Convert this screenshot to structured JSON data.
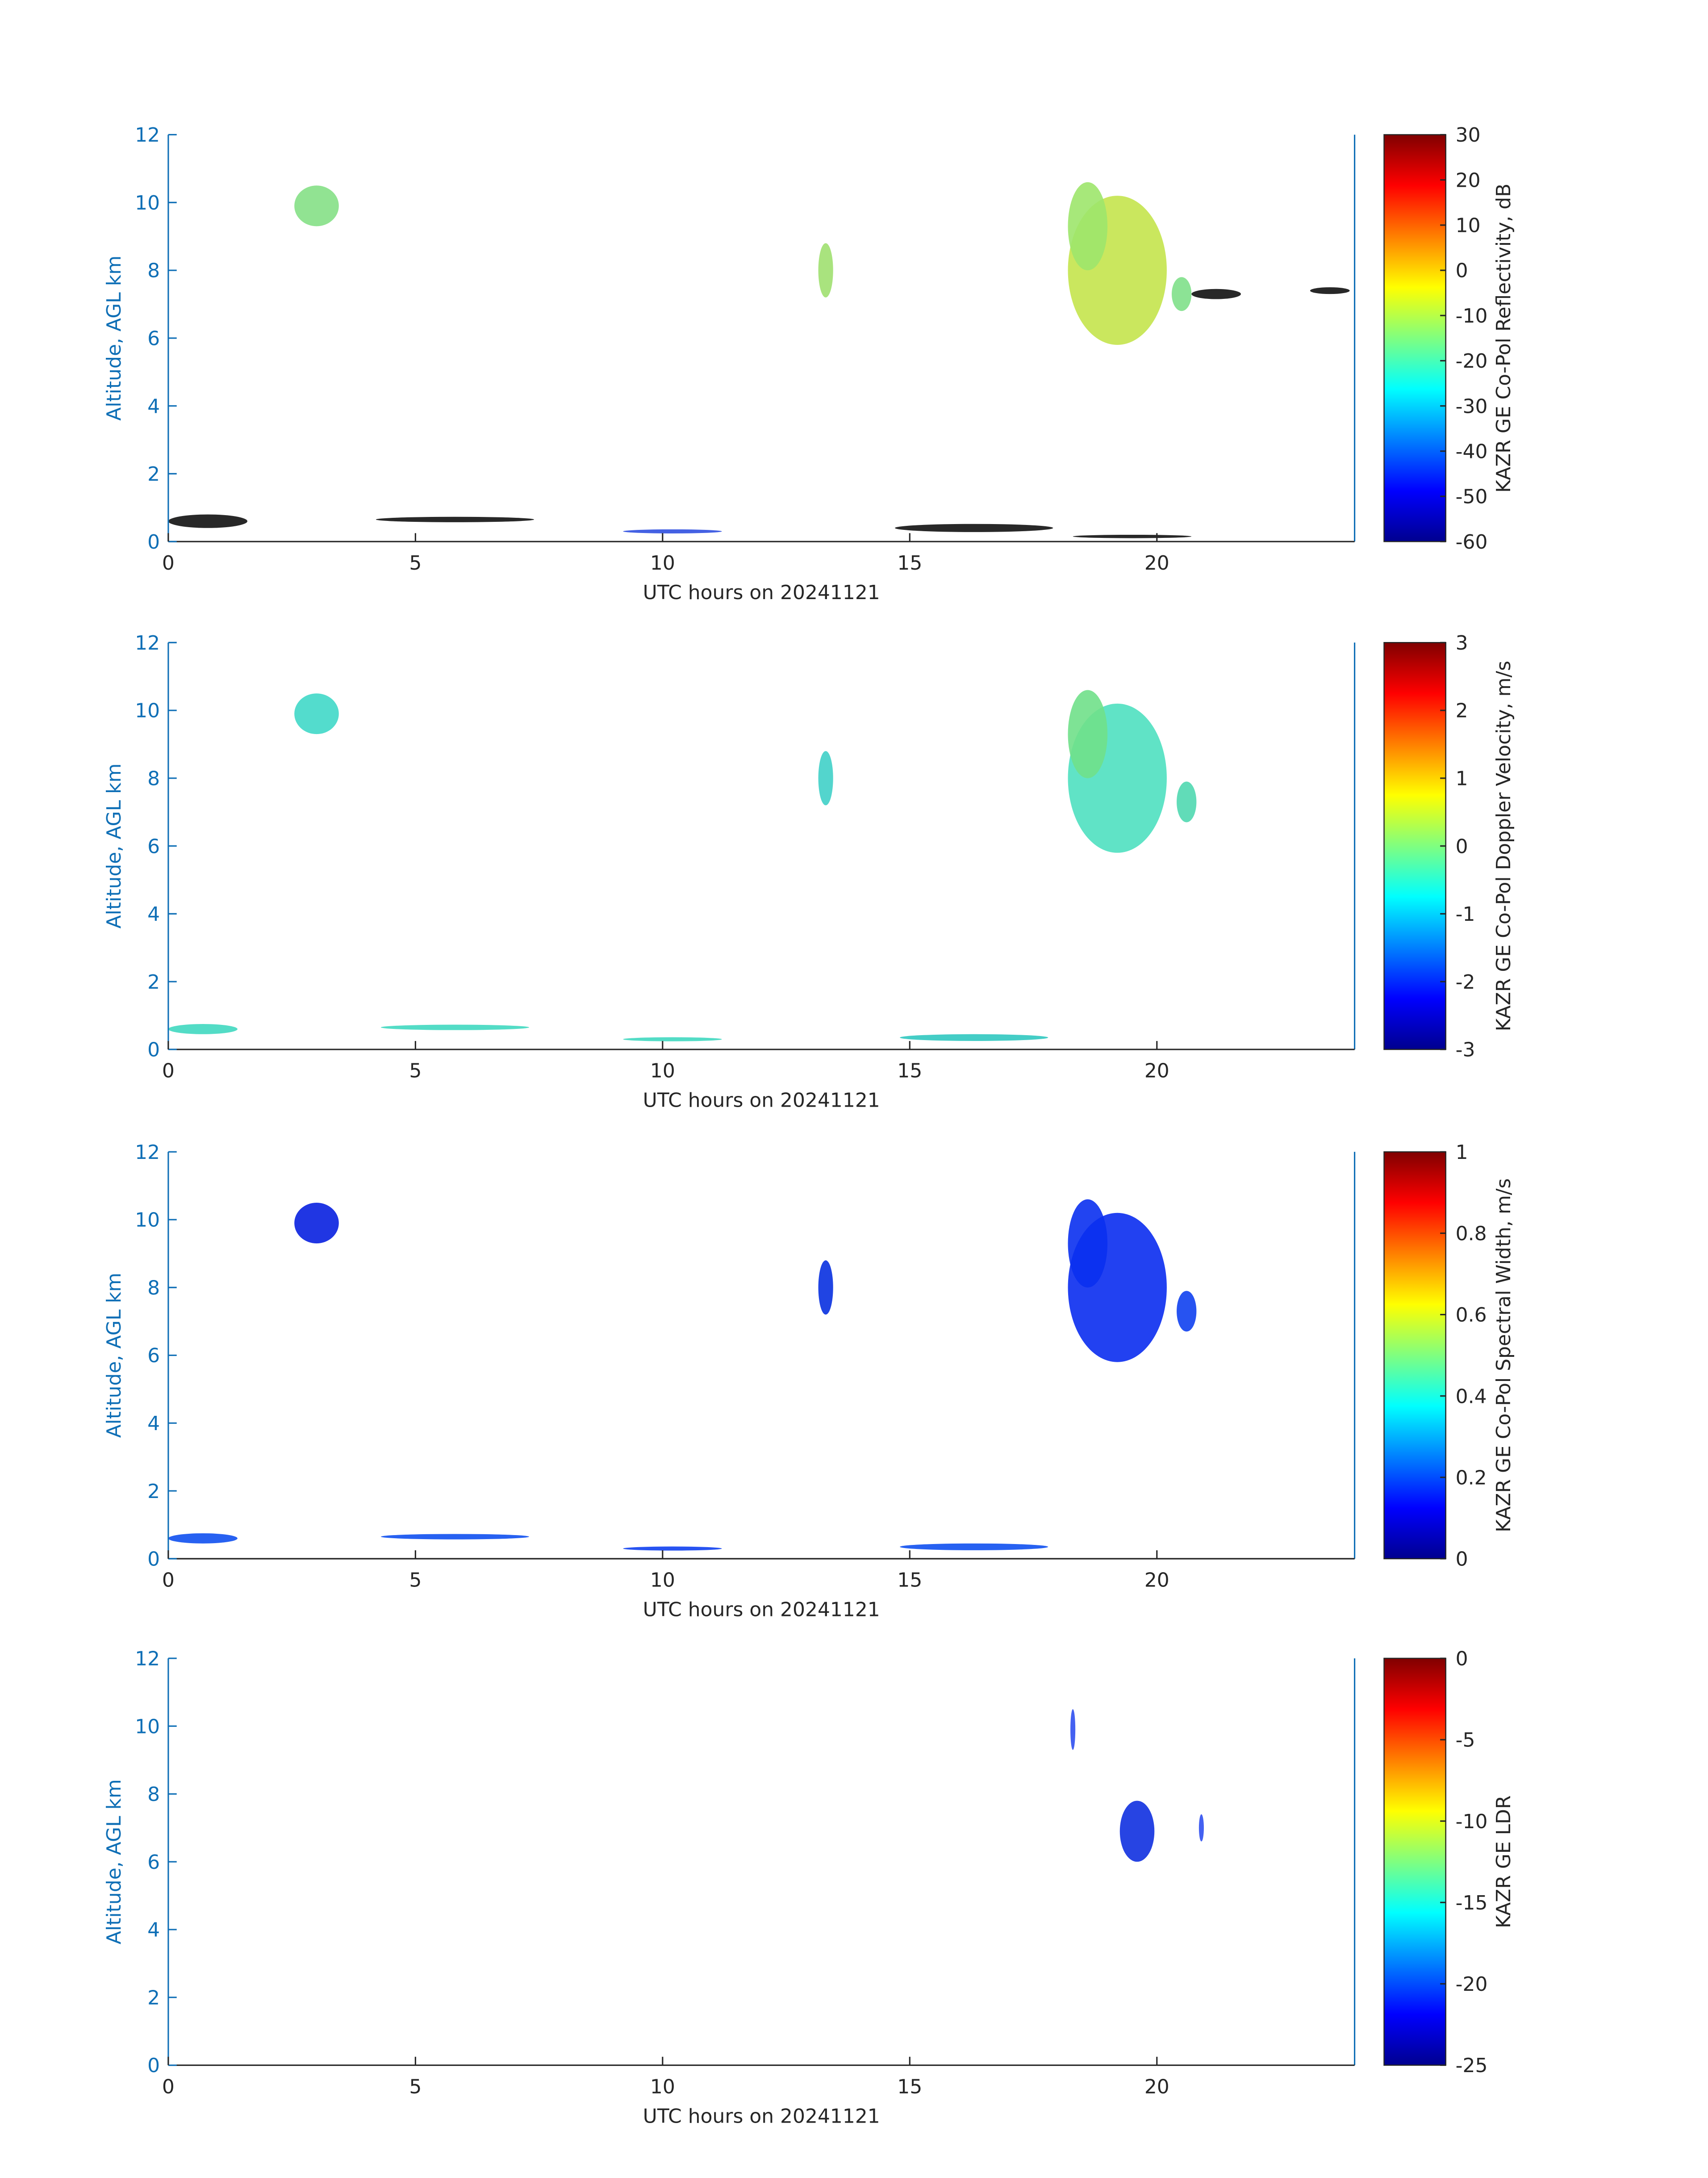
{
  "chart_data": [
    {
      "type": "heatmap",
      "xlabel": "UTC hours on 20241121",
      "ylabel": "Altitude, AGL km",
      "xlim": [
        0,
        24
      ],
      "ylim": [
        0,
        12
      ],
      "xticks": [
        0,
        5,
        10,
        15,
        20
      ],
      "yticks": [
        0,
        2,
        4,
        6,
        8,
        10,
        12
      ],
      "colorbar": {
        "label": "KAZR GE Co-Pol Reflectivity, dB",
        "colormap": "jet",
        "lim": [
          -60,
          30
        ],
        "ticks": [
          -60,
          -50,
          -40,
          -30,
          -20,
          -10,
          0,
          10,
          20,
          30
        ]
      }
    },
    {
      "type": "heatmap",
      "xlabel": "UTC hours on 20241121",
      "ylabel": "Altitude, AGL km",
      "xlim": [
        0,
        24
      ],
      "ylim": [
        0,
        12
      ],
      "xticks": [
        0,
        5,
        10,
        15,
        20
      ],
      "yticks": [
        0,
        2,
        4,
        6,
        8,
        10,
        12
      ],
      "colorbar": {
        "label": "KAZR GE Co-Pol Doppler Velocity, m/s",
        "colormap": "jet",
        "lim": [
          -3,
          3
        ],
        "ticks": [
          -3,
          -2,
          -1,
          0,
          1,
          2,
          3
        ]
      }
    },
    {
      "type": "heatmap",
      "xlabel": "UTC hours on 20241121",
      "ylabel": "Altitude, AGL km",
      "xlim": [
        0,
        24
      ],
      "ylim": [
        0,
        12
      ],
      "xticks": [
        0,
        5,
        10,
        15,
        20
      ],
      "yticks": [
        0,
        2,
        4,
        6,
        8,
        10,
        12
      ],
      "colorbar": {
        "label": "KAZR GE Co-Pol Spectral Width, m/s",
        "colormap": "jet",
        "lim": [
          0,
          1
        ],
        "ticks": [
          0,
          0.2,
          0.4,
          0.6,
          0.8,
          1
        ]
      }
    },
    {
      "type": "heatmap",
      "xlabel": "UTC hours on 20241121",
      "ylabel": "Altitude, AGL km",
      "xlim": [
        0,
        24
      ],
      "ylim": [
        0,
        12
      ],
      "xticks": [
        0,
        5,
        10,
        15,
        20
      ],
      "yticks": [
        0,
        2,
        4,
        6,
        8,
        10,
        12
      ],
      "colorbar": {
        "label": "KAZR GE LDR",
        "colormap": "jet",
        "lim": [
          -25,
          0
        ],
        "ticks": [
          -25,
          -20,
          -15,
          -10,
          -5,
          0
        ]
      }
    }
  ]
}
